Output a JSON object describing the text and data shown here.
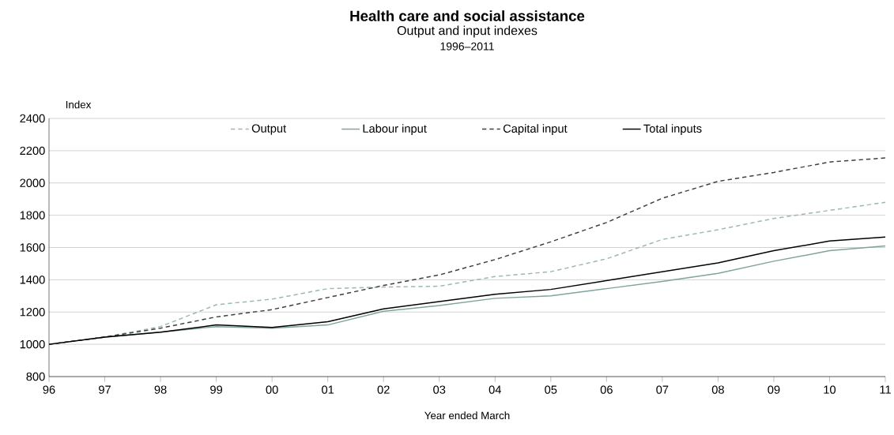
{
  "chart_data": {
    "type": "line",
    "title": "Health care and social assistance",
    "subtitle": "Output and input indexes",
    "annotations": [
      "1996–2011"
    ],
    "xlabel": "Year ended March",
    "ylabel": "Index",
    "categories": [
      "96",
      "97",
      "98",
      "99",
      "00",
      "01",
      "02",
      "03",
      "04",
      "05",
      "06",
      "07",
      "08",
      "09",
      "10",
      "11"
    ],
    "series": [
      {
        "name": "Output",
        "color": "#9bb8b2",
        "line_style": "dashed",
        "values": [
          1000,
          1045,
          1110,
          1245,
          1280,
          1345,
          1355,
          1360,
          1420,
          1450,
          1530,
          1650,
          1710,
          1780,
          1830,
          1880
        ]
      },
      {
        "name": "Labour input",
        "color": "#7fa39e",
        "line_style": "solid",
        "values": [
          1000,
          1045,
          1075,
          1110,
          1100,
          1120,
          1205,
          1240,
          1285,
          1300,
          1345,
          1390,
          1440,
          1515,
          1580,
          1610
        ]
      },
      {
        "name": "Capital input",
        "color": "#404040",
        "line_style": "dashed",
        "values": [
          1000,
          1045,
          1100,
          1170,
          1215,
          1290,
          1365,
          1430,
          1525,
          1635,
          1755,
          1905,
          2010,
          2065,
          2130,
          2155
        ]
      },
      {
        "name": "Total inputs",
        "color": "#000000",
        "line_style": "solid",
        "values": [
          1000,
          1045,
          1075,
          1120,
          1105,
          1140,
          1220,
          1265,
          1310,
          1340,
          1395,
          1450,
          1505,
          1580,
          1640,
          1665
        ]
      }
    ],
    "ylim": [
      800,
      2400
    ],
    "yticks": [
      800,
      1000,
      1200,
      1400,
      1600,
      1800,
      2000,
      2200,
      2400
    ],
    "grid": "y",
    "legend": "top",
    "marker": "none"
  }
}
